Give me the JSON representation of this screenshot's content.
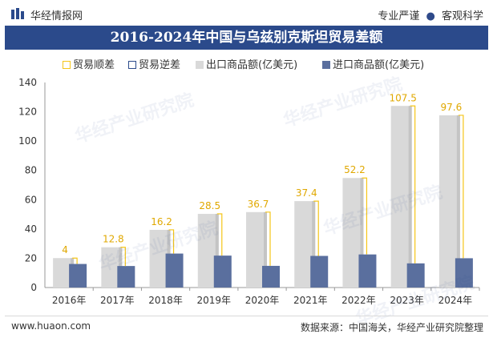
{
  "header": {
    "brand": "华经情报网",
    "tagline_left": "专业严谨",
    "tagline_sep": "●",
    "tagline_right": "客观科学"
  },
  "watermark": "华经产业研究院",
  "colors": {
    "title_band": "#2b4a8b",
    "surplus": "#f5c518",
    "deficit": "#2b4a8b",
    "export": "#d9d9d9",
    "import": "#5a6f9e"
  },
  "chart_data": {
    "type": "bar",
    "title": "2016-2024年中国与乌兹别克斯坦贸易差额",
    "categories": [
      "2016年",
      "2017年",
      "2018年",
      "2019年",
      "2020年",
      "2021年",
      "2022年",
      "2023年",
      "2024年"
    ],
    "ylim": [
      0,
      140
    ],
    "yticks": [
      "0",
      "20",
      "40",
      "60",
      "80",
      "100",
      "120",
      "140"
    ],
    "legend_position": "top",
    "legend": [
      "贸易顺差",
      "贸易逆差",
      "出口商品额(亿美元)",
      "进口商品额(亿美元)"
    ],
    "series": [
      {
        "name": "出口商品额(亿美元)",
        "values": [
          20.1,
          27.5,
          39.4,
          50.3,
          51.5,
          59.0,
          74.8,
          124.0,
          117.6
        ]
      },
      {
        "name": "进口商品额(亿美元)",
        "values": [
          16.1,
          14.7,
          23.2,
          21.8,
          14.8,
          21.6,
          22.6,
          16.5,
          20.0
        ]
      },
      {
        "name": "贸易顺差",
        "values": [
          4,
          12.8,
          16.2,
          28.5,
          36.7,
          37.4,
          52.2,
          107.5,
          97.6
        ]
      }
    ],
    "surplus_labels": [
      "4",
      "12.8",
      "16.2",
      "28.5",
      "36.7",
      "37.4",
      "52.2",
      "107.5",
      "97.6"
    ]
  },
  "footer": {
    "website": "www.huaon.com",
    "source": "数据来源：中国海关，华经产业研究院整理"
  }
}
